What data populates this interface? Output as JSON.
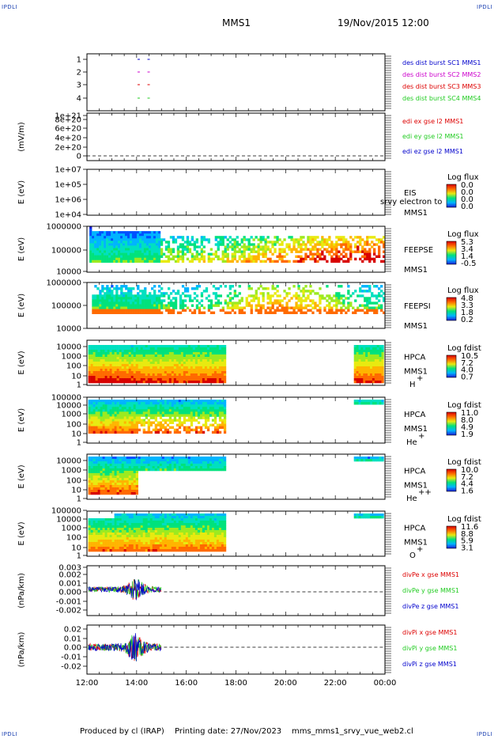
{
  "corners": {
    "tl": "IPDLI",
    "tr": "IPDLI",
    "bl": "IPDLI",
    "br": "IPDLI"
  },
  "header": {
    "mission": "MMS1",
    "datetime": "19/Nov/2015 12:00"
  },
  "footer": {
    "produced": "Produced by cl (IRAP)",
    "printing": "Printing date: 27/Nov/2023",
    "script": "mms_mms1_srvy_vue_web2.cl"
  },
  "xaxis": {
    "ticks": [
      "12:00",
      "14:00",
      "16:00",
      "18:00",
      "20:00",
      "22:00",
      "00:00"
    ]
  },
  "colors": {
    "blue": "#0000cc",
    "red": "#dd0000",
    "magenta": "#cc00cc",
    "green": "#22cc22"
  },
  "chart_data": [
    {
      "id": "p1",
      "type": "scatter",
      "ylabel": "",
      "yticks": [
        "1",
        "2",
        "3",
        "4"
      ],
      "legend": [
        {
          "text": "des dist burst SC1 MMS1",
          "color": "#0000cc"
        },
        {
          "text": "des dist burst SC2 MMS2",
          "color": "#cc00cc"
        },
        {
          "text": "des dist burst SC3 MMS3",
          "color": "#dd0000"
        },
        {
          "text": "des dist burst SC4 MMS4",
          "color": "#22cc22"
        }
      ],
      "series": [
        {
          "name": "des dist burst SC1 MMS1",
          "y": 1,
          "x": [
            14.1,
            14.5
          ]
        },
        {
          "name": "des dist burst SC2 MMS2",
          "y": 2,
          "x": [
            14.1,
            14.5
          ]
        },
        {
          "name": "des dist burst SC3 MMS3",
          "y": 3,
          "x": [
            14.1,
            14.5
          ]
        },
        {
          "name": "des dist burst SC4 MMS4",
          "y": 4,
          "x": [
            14.1,
            14.5
          ]
        }
      ]
    },
    {
      "id": "p2",
      "type": "line",
      "ylabel": "(mV/m)",
      "yticks": [
        "0",
        "2e+20",
        "4e+20",
        "6e+20",
        "8e+20",
        "1e+21"
      ],
      "legend": [
        {
          "text": "edi ex gse l2 MMS1",
          "color": "#dd0000"
        },
        {
          "text": "edi ey gse l2 MMS1",
          "color": "#22cc22"
        },
        {
          "text": "edi ez gse l2 MMS1",
          "color": "#0000cc"
        }
      ]
    },
    {
      "id": "p3",
      "type": "heatmap",
      "ylabel": "E (eV)",
      "yticks": [
        "1e+04",
        "1e+05",
        "1e+06",
        "1e+07"
      ],
      "instrument": [
        "EIS",
        "MMS1"
      ],
      "overlay": "srvy electron to",
      "cbar": {
        "title": "Log flux",
        "labels": [
          "0.0",
          "0.0",
          "0.0",
          "0.0"
        ]
      }
    },
    {
      "id": "p4",
      "type": "heatmap",
      "ylabel": "E (eV)",
      "yticks": [
        "10000",
        "100000",
        "1000000"
      ],
      "instrument": [
        "FEEPSE",
        "MMS1"
      ],
      "cbar": {
        "title": "Log flux",
        "labels": [
          "5.3",
          "3.4",
          "1.4",
          "-0.5"
        ]
      }
    },
    {
      "id": "p5",
      "type": "heatmap",
      "ylabel": "E (eV)",
      "yticks": [
        "10000",
        "100000",
        "1000000"
      ],
      "instrument": [
        "FEEPSI",
        "MMS1"
      ],
      "cbar": {
        "title": "Log flux",
        "labels": [
          "4.8",
          "3.3",
          "1.8",
          "0.2"
        ]
      }
    },
    {
      "id": "p6",
      "type": "heatmap",
      "ylabel": "E (eV)",
      "yticks": [
        "1",
        "10",
        "100",
        "1000",
        "10000"
      ],
      "instrument": [
        "HPCA",
        "MMS1"
      ],
      "species": "H",
      "species_sup": "+",
      "cbar": {
        "title": "Log fdist",
        "labels": [
          "10.5",
          "7.2",
          "4.0",
          "0.7"
        ]
      }
    },
    {
      "id": "p7",
      "type": "heatmap",
      "ylabel": "E (eV)",
      "yticks": [
        "1",
        "10",
        "100",
        "1000",
        "10000",
        "100000"
      ],
      "instrument": [
        "HPCA",
        "MMS1"
      ],
      "species": "He",
      "species_sup": "+",
      "cbar": {
        "title": "Log fdist",
        "labels": [
          "11.0",
          "8.0",
          "4.9",
          "1.9"
        ]
      }
    },
    {
      "id": "p8",
      "type": "heatmap",
      "ylabel": "E (eV)",
      "yticks": [
        "1",
        "10",
        "100",
        "1000",
        "10000"
      ],
      "instrument": [
        "HPCA",
        "MMS1"
      ],
      "species": "He",
      "species_sup": "++",
      "cbar": {
        "title": "Log fdist",
        "labels": [
          "10.0",
          "7.2",
          "4.4",
          "1.6"
        ]
      }
    },
    {
      "id": "p9",
      "type": "heatmap",
      "ylabel": "E (eV)",
      "yticks": [
        "1",
        "10",
        "100",
        "1000",
        "10000",
        "100000"
      ],
      "instrument": [
        "HPCA",
        "MMS1"
      ],
      "species": "O",
      "species_sup": "+",
      "cbar": {
        "title": "Log fdist",
        "labels": [
          "11.6",
          "8.8",
          "5.9",
          "3.1"
        ]
      }
    },
    {
      "id": "p10",
      "type": "line",
      "ylabel": "(nPa/km)",
      "yticks": [
        "-0.002",
        "-0.001",
        "0.000",
        "0.001",
        "0.002",
        "0.003"
      ],
      "legend": [
        {
          "text": "divPe x gse MMS1",
          "color": "#dd0000"
        },
        {
          "text": "divPe y gse MMS1",
          "color": "#22cc22"
        },
        {
          "text": "divPe z gse MMS1",
          "color": "#0000cc"
        }
      ]
    },
    {
      "id": "p11",
      "type": "line",
      "ylabel": "(nPa/km)",
      "yticks": [
        "-0.02",
        "-0.01",
        "0.00",
        "0.01",
        "0.02"
      ],
      "legend": [
        {
          "text": "divPi x gse MMS1",
          "color": "#dd0000"
        },
        {
          "text": "divPi y gse MMS1",
          "color": "#22cc22"
        },
        {
          "text": "divPi z gse MMS1",
          "color": "#0000cc"
        }
      ]
    }
  ]
}
